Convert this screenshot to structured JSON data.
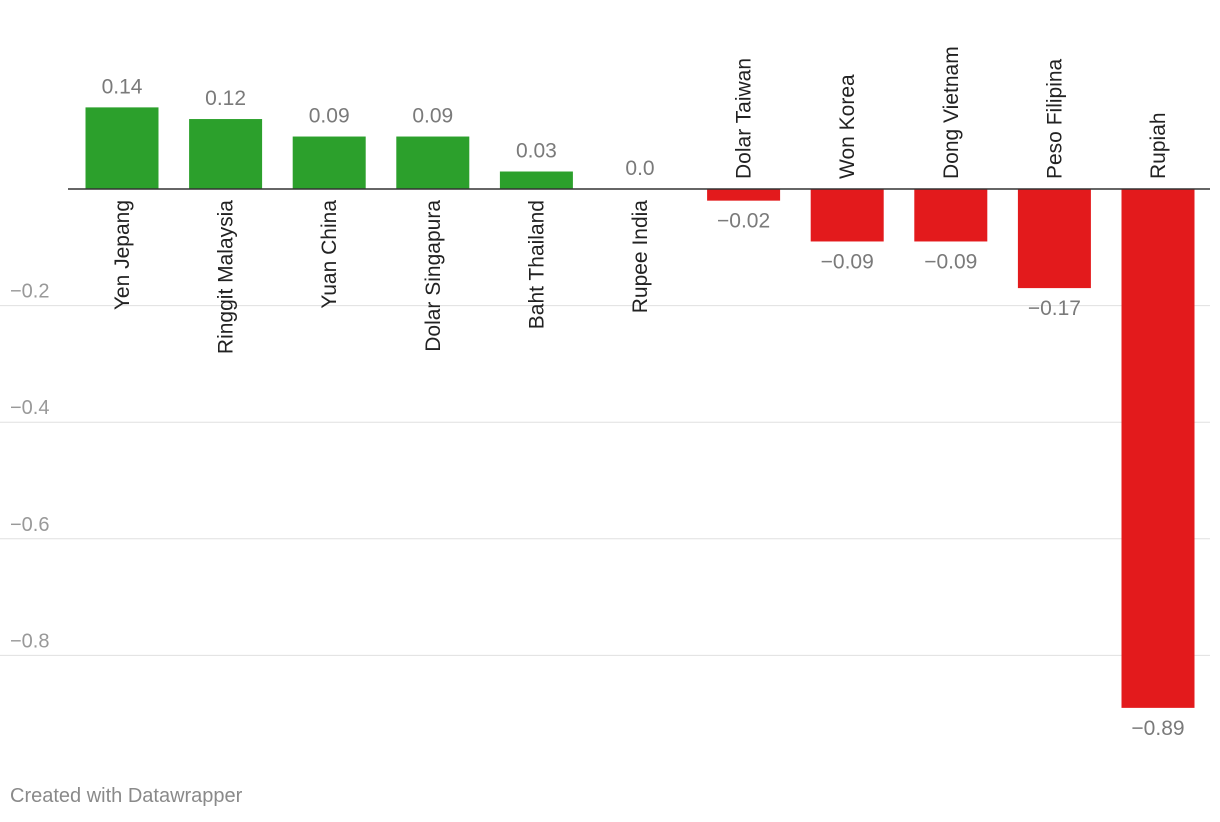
{
  "chart_data": {
    "type": "bar",
    "title": "",
    "xlabel": "",
    "ylabel": "",
    "categories": [
      "Yen Jepang",
      "Ringgit Malaysia",
      "Yuan China",
      "Dolar Singapura",
      "Baht Thailand",
      "Rupee India",
      "Dolar Taiwan",
      "Won Korea",
      "Dong Vietnam",
      "Peso Filipina",
      "Rupiah"
    ],
    "values": [
      0.14,
      0.12,
      0.09,
      0.09,
      0.03,
      0.0,
      -0.02,
      -0.09,
      -0.09,
      -0.17,
      -0.89
    ],
    "value_labels": [
      "0.14",
      "0.12",
      "0.09",
      "0.09",
      "0.03",
      "0.0",
      "−0.02",
      "−0.09",
      "−0.09",
      "−0.17",
      "−0.89"
    ],
    "y_ticks": [
      -0.2,
      -0.4,
      -0.6,
      -0.8
    ],
    "y_tick_labels": [
      "−0.2",
      "−0.4",
      "−0.6",
      "−0.8"
    ],
    "ylim": [
      -0.92,
      0.2
    ],
    "grid": true,
    "colors": {
      "positive": "#2ca02c",
      "negative": "#e31a1c",
      "grid": "#e0e0e0",
      "baseline": "#333333",
      "tick_text": "#999999",
      "value_text": "#7a7a7a",
      "category_text": "#222222"
    }
  },
  "footer": {
    "credit": "Created with Datawrapper"
  }
}
